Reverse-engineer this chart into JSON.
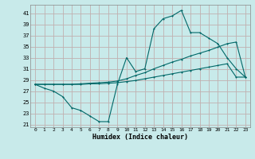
{
  "xlabel": "Humidex (Indice chaleur)",
  "xlim": [
    -0.5,
    23.5
  ],
  "ylim": [
    20.5,
    42.5
  ],
  "yticks": [
    21,
    23,
    25,
    27,
    29,
    31,
    33,
    35,
    37,
    39,
    41
  ],
  "xticks": [
    0,
    1,
    2,
    3,
    4,
    5,
    6,
    7,
    8,
    9,
    10,
    11,
    12,
    13,
    14,
    15,
    16,
    17,
    18,
    19,
    20,
    21,
    22,
    23
  ],
  "bg_color": "#c8eaea",
  "grid_color": "#c0b0b0",
  "line_color": "#006868",
  "line1_x": [
    0,
    1,
    2,
    3,
    4,
    5,
    6,
    7,
    8,
    9,
    10,
    11,
    12,
    13,
    14,
    15,
    16,
    17,
    18,
    19,
    20,
    21,
    22,
    23
  ],
  "line1_y": [
    28.2,
    27.5,
    27.0,
    26.0,
    24.0,
    23.5,
    22.5,
    21.5,
    21.5,
    28.2,
    33.0,
    30.5,
    31.0,
    38.2,
    40.0,
    40.5,
    41.5,
    37.5,
    37.5,
    36.5,
    35.5,
    33.0,
    31.0,
    29.5
  ],
  "line2_x": [
    0,
    1,
    2,
    3,
    4,
    5,
    6,
    7,
    8,
    9,
    10,
    11,
    12,
    13,
    14,
    15,
    16,
    17,
    18,
    19,
    20,
    21,
    22,
    23
  ],
  "line2_y": [
    28.2,
    28.2,
    28.2,
    28.2,
    28.2,
    28.3,
    28.4,
    28.5,
    28.6,
    28.8,
    29.2,
    29.8,
    30.3,
    31.0,
    31.6,
    32.2,
    32.7,
    33.3,
    33.8,
    34.3,
    34.9,
    35.5,
    35.8,
    29.5
  ],
  "line3_x": [
    0,
    1,
    2,
    3,
    4,
    5,
    6,
    7,
    8,
    9,
    10,
    11,
    12,
    13,
    14,
    15,
    16,
    17,
    18,
    19,
    20,
    21,
    22,
    23
  ],
  "line3_y": [
    28.2,
    28.2,
    28.2,
    28.2,
    28.2,
    28.2,
    28.3,
    28.3,
    28.4,
    28.5,
    28.7,
    28.9,
    29.2,
    29.5,
    29.8,
    30.1,
    30.4,
    30.7,
    31.0,
    31.3,
    31.6,
    31.9,
    29.5,
    29.5
  ]
}
